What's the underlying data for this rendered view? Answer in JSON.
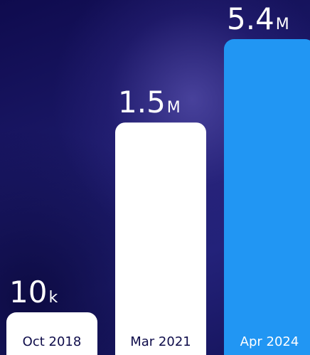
{
  "chart_data": {
    "type": "bar",
    "title": "",
    "xlabel": "",
    "ylabel": "",
    "grid": false,
    "legend": "none",
    "categories": [
      "Oct 2018",
      "Mar 2021",
      "Apr 2024"
    ],
    "values": [
      10000,
      1500000,
      5400000
    ],
    "value_labels": [
      {
        "number": "10",
        "unit": "k"
      },
      {
        "number": "1.5",
        "unit": "M"
      },
      {
        "number": "5.4",
        "unit": "M"
      }
    ],
    "bar_colors": [
      "#ffffff",
      "#ffffff",
      "#2196f3"
    ],
    "category_label_colors": [
      "#0e0c4a",
      "#0e0c4a",
      "#ffffff"
    ]
  }
}
